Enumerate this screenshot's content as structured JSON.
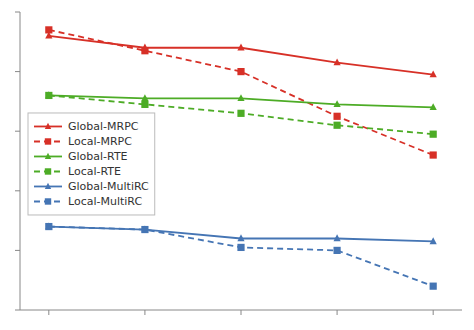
{
  "chart_data": {
    "type": "line",
    "x": [
      1,
      2,
      3,
      4,
      5
    ],
    "xlim": [
      0.7,
      5.3
    ],
    "xticks": [
      1,
      2,
      3,
      4,
      5
    ],
    "ylim": [
      0,
      100
    ],
    "yticks": [
      0,
      20,
      40,
      60,
      80,
      100
    ],
    "tick_labels": false,
    "grid": false,
    "legend": "left",
    "series": [
      {
        "name": "Global-MRPC",
        "color": "#d73027",
        "marker": "triangle",
        "line_style": "solid",
        "values": [
          92,
          88,
          88,
          83,
          79
        ]
      },
      {
        "name": "Local-MRPC",
        "color": "#d73027",
        "marker": "square",
        "line_style": "dashed",
        "values": [
          94,
          87,
          80,
          65,
          52
        ]
      },
      {
        "name": "Global-RTE",
        "color": "#4dac26",
        "marker": "triangle",
        "line_style": "solid",
        "values": [
          72,
          71,
          71,
          69,
          68
        ]
      },
      {
        "name": "Local-RTE",
        "color": "#4dac26",
        "marker": "square",
        "line_style": "dashed",
        "values": [
          72,
          69,
          66,
          62,
          59
        ]
      },
      {
        "name": "Global-MultiRC",
        "color": "#4575b4",
        "marker": "triangle",
        "line_style": "solid",
        "values": [
          28,
          27,
          24,
          24,
          23
        ]
      },
      {
        "name": "Local-MultiRC",
        "color": "#4575b4",
        "marker": "square",
        "line_style": "dashed",
        "values": [
          28,
          27,
          21,
          20,
          8
        ]
      }
    ]
  }
}
